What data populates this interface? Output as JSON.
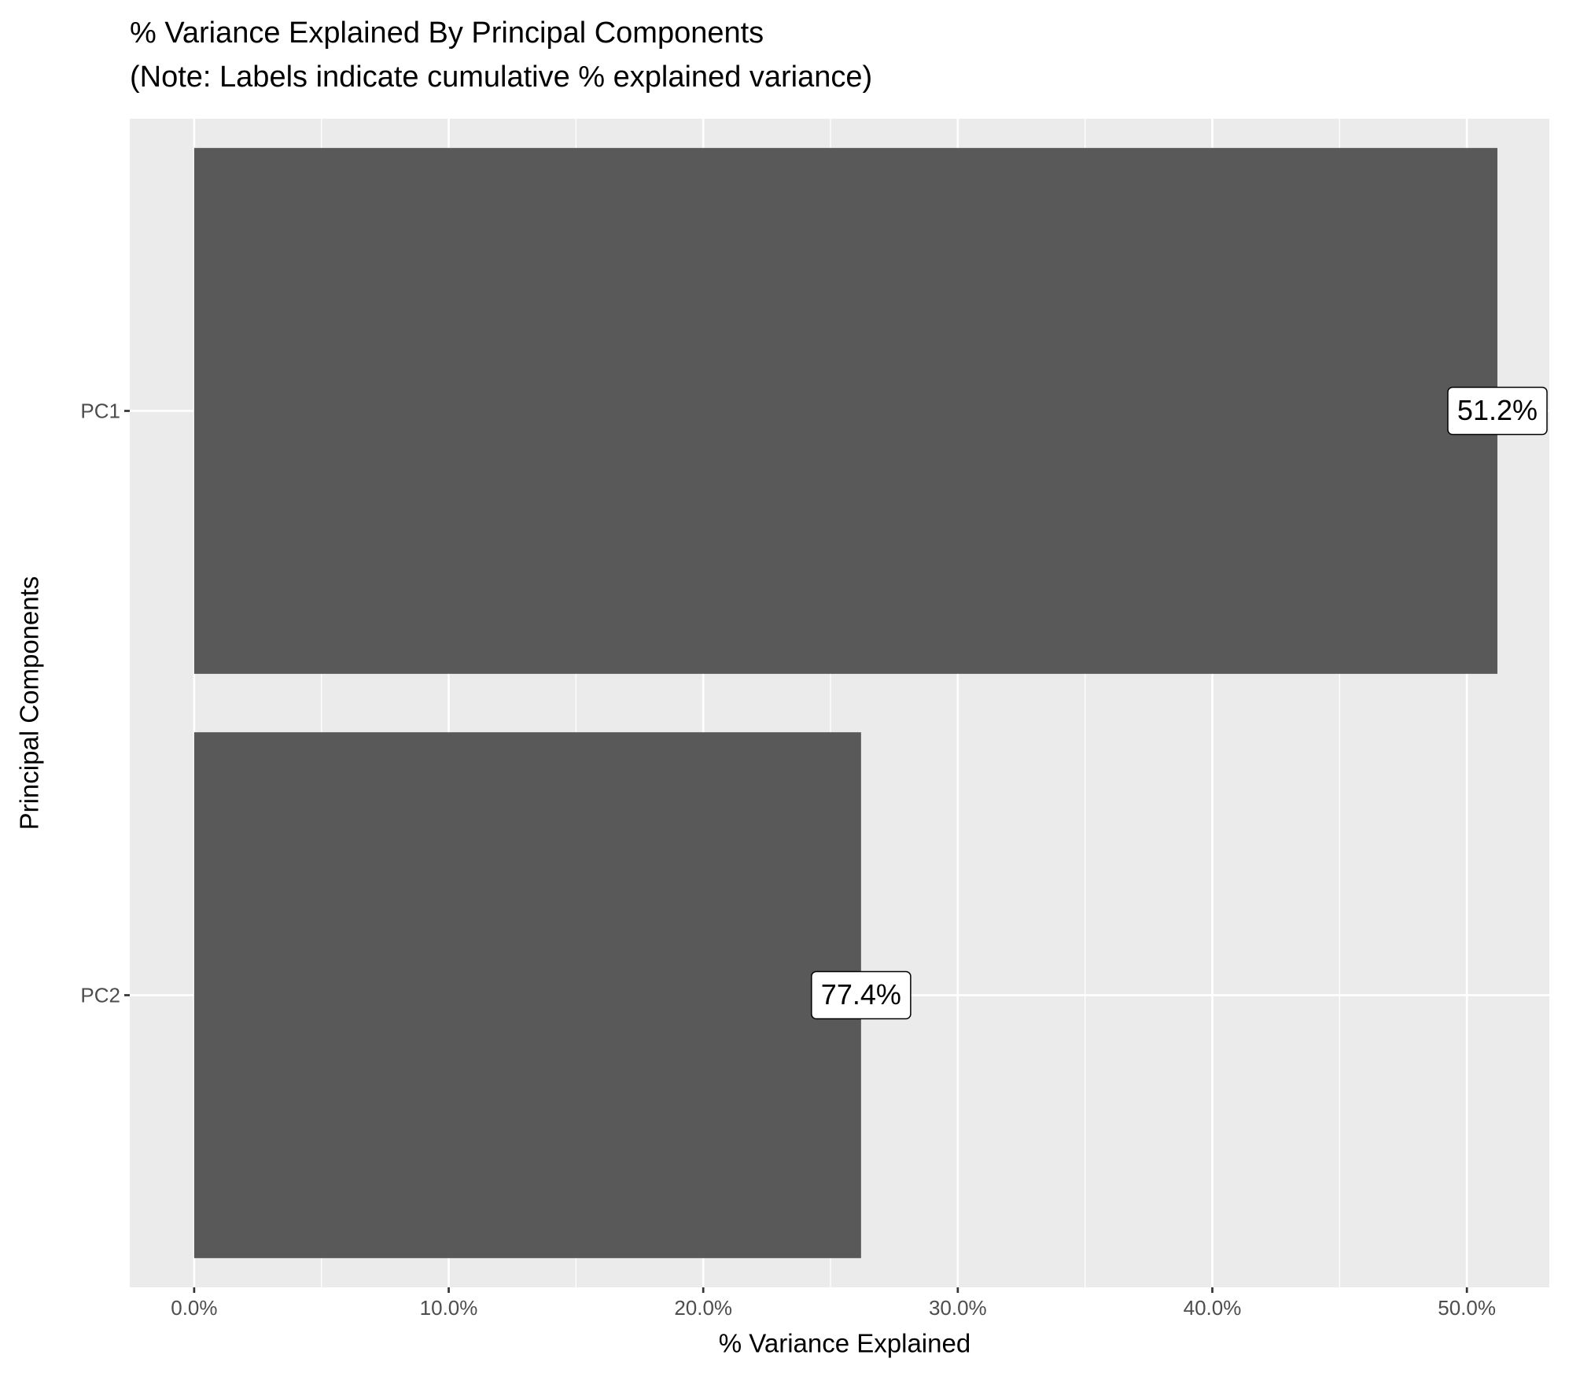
{
  "chart_data": {
    "type": "hbar",
    "title": "% Variance Explained By Principal Components",
    "subtitle": "(Note: Labels indicate cumulative % explained variance)",
    "x_label": "% Variance Explained",
    "y_label": "Principal Components",
    "categories": [
      "PC1",
      "PC2"
    ],
    "values": [
      51.2,
      26.2
    ],
    "color": "#595959",
    "cumulative_values": [
      51.2,
      77.4
    ],
    "cumulative_labels": [
      "51.2%",
      "77.4%"
    ],
    "xlim": [
      -2.53,
      53.24
    ],
    "xticks": [
      {
        "value": 0,
        "label": "0.0%"
      },
      {
        "value": 10,
        "label": "10.0%"
      },
      {
        "value": 20,
        "label": "20.0%"
      },
      {
        "value": 30,
        "label": "30.0%"
      },
      {
        "value": 40,
        "label": "40.0%"
      },
      {
        "value": 50,
        "label": "50.0%"
      }
    ],
    "grid": true
  }
}
